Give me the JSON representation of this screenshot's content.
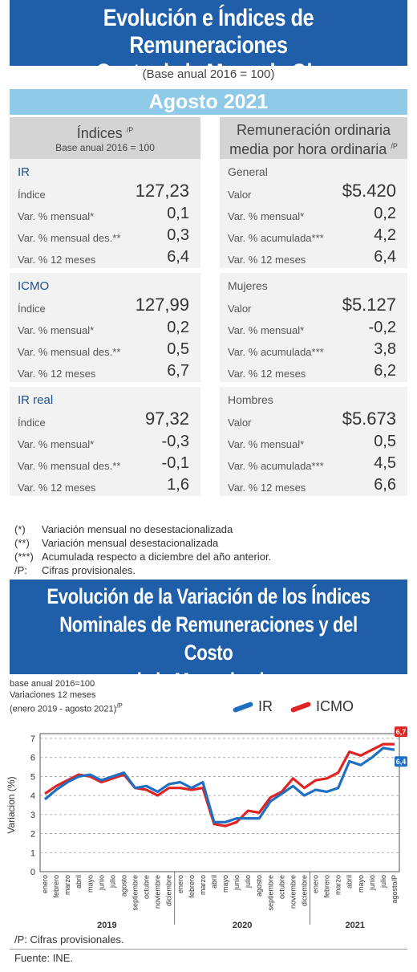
{
  "header": {
    "title_line1": "Evolución e Índices de Remuneraciones",
    "title_line2": "y Costo de la Mano de Obra",
    "base": "(Base anual 2016 = 100)",
    "month": "Agosto 2021"
  },
  "left": {
    "head_title": "Índices",
    "head_sup": "/P",
    "head_sub": "Base anual 2016 = 100",
    "sections": [
      {
        "title": "IR",
        "rows": [
          {
            "label": "Índice",
            "value": "127,23"
          },
          {
            "label": "Var. % mensual*",
            "value": "0,1"
          },
          {
            "label": "Var. % mensual des.**",
            "value": "0,3"
          },
          {
            "label": "Var. % 12 meses",
            "value": "6,4"
          }
        ]
      },
      {
        "title": "ICMO",
        "rows": [
          {
            "label": "Índice",
            "value": "127,99"
          },
          {
            "label": "Var. % mensual*",
            "value": "0,2"
          },
          {
            "label": "Var. % mensual des.**",
            "value": "0,5"
          },
          {
            "label": "Var. % 12 meses",
            "value": "6,7"
          }
        ]
      },
      {
        "title": "IR real",
        "rows": [
          {
            "label": "Índice",
            "value": "97,32"
          },
          {
            "label": "Var. % mensual*",
            "value": "-0,3"
          },
          {
            "label": "Var. % mensual des.**",
            "value": "-0,1"
          },
          {
            "label": "Var. % 12 meses",
            "value": "1,6"
          }
        ]
      }
    ]
  },
  "right": {
    "head_line1": "Remuneración ordinaria",
    "head_line2": "media por hora ordinaria",
    "head_sup": "/P",
    "sections": [
      {
        "title": "General",
        "rows": [
          {
            "label": "Valor",
            "value": "$5.420"
          },
          {
            "label": "Var. % mensual*",
            "value": "0,2"
          },
          {
            "label": "Var. % acumulada***",
            "value": "4,2"
          },
          {
            "label": "Var. % 12 meses",
            "value": "6,4"
          }
        ]
      },
      {
        "title": "Mujeres",
        "rows": [
          {
            "label": "Valor",
            "value": "$5.127"
          },
          {
            "label": "Var. % mensual*",
            "value": "-0,2"
          },
          {
            "label": "Var. % acumulada***",
            "value": "3,8"
          },
          {
            "label": "Var. % 12 meses",
            "value": "6,2"
          }
        ]
      },
      {
        "title": "Hombres",
        "rows": [
          {
            "label": "Valor",
            "value": "$5.673"
          },
          {
            "label": "Var. % mensual*",
            "value": "0,5"
          },
          {
            "label": "Var. % acumulada***",
            "value": "4,5"
          },
          {
            "label": "Var. % 12 meses",
            "value": "6,6"
          }
        ]
      }
    ]
  },
  "notes": [
    {
      "key": "(*)",
      "text": "Variación mensual no desestacionalizada"
    },
    {
      "key": "(**)",
      "text": "Variación mensual desestacionalizada"
    },
    {
      "key": "(***)",
      "text": "Acumulada respecto a diciembre del año anterior."
    },
    {
      "key": "/P:",
      "text": "Cifras provisionales."
    }
  ],
  "bottom_title": {
    "line1": "Evolución de la Variación de los Índices",
    "line2": "Nominales de Remuneraciones y del Costo",
    "line3": "de la Mano de obra"
  },
  "chart_meta": {
    "line1": "base anual 2016=100",
    "line2": "Variaciones 12 meses",
    "line3": "(enero 2019 - agosto 2021)",
    "line3_sup": "/P"
  },
  "chart_foot": "/P:    Cifras provisionales.",
  "source": "Fuente: INE.",
  "chart_data": {
    "type": "line",
    "ylabel": "Variacion (%)",
    "ylim": [
      0,
      7
    ],
    "yticks": [
      0,
      1,
      2,
      3,
      4,
      5,
      6,
      7
    ],
    "grid": "horizontal dashed",
    "legend": "top-right",
    "categories": [
      "enero",
      "febrero",
      "marzo",
      "abril",
      "mayo",
      "junio",
      "julio",
      "agosto",
      "septiembre",
      "octubre",
      "noviembre",
      "diciembre",
      "enero",
      "febrero",
      "marzo",
      "abril",
      "mayo",
      "junio",
      "julio",
      "agosto",
      "septiembre",
      "octubre",
      "noviembre",
      "diciembre",
      "enero",
      "febrero",
      "marzo",
      "abril",
      "mayo",
      "junio",
      "julio",
      "agosto/P"
    ],
    "years": [
      {
        "label": "2019",
        "start": 0,
        "end": 11
      },
      {
        "label": "2020",
        "start": 12,
        "end": 23
      },
      {
        "label": "2021",
        "start": 24,
        "end": 31
      }
    ],
    "series": [
      {
        "name": "IR",
        "color": "#1f6fc2",
        "values": [
          3.8,
          4.3,
          4.7,
          5.0,
          5.1,
          4.8,
          5.0,
          5.2,
          4.4,
          4.5,
          4.2,
          4.6,
          4.7,
          4.4,
          4.7,
          2.6,
          2.6,
          2.8,
          2.8,
          2.8,
          3.7,
          4.1,
          4.5,
          4.0,
          4.3,
          4.2,
          4.4,
          5.8,
          5.6,
          6.0,
          6.5,
          6.4
        ]
      },
      {
        "name": "ICMO",
        "color": "#e02424",
        "values": [
          4.1,
          4.5,
          4.8,
          5.1,
          5.0,
          4.7,
          4.9,
          5.1,
          4.4,
          4.3,
          4.0,
          4.4,
          4.4,
          4.3,
          4.4,
          2.5,
          2.4,
          2.6,
          3.2,
          3.1,
          3.9,
          4.2,
          4.9,
          4.4,
          4.8,
          4.9,
          5.2,
          6.3,
          6.1,
          6.4,
          6.7,
          6.7
        ]
      }
    ],
    "end_labels": [
      {
        "series": "ICMO",
        "text": "6,7"
      },
      {
        "series": "IR",
        "text": "6,4"
      }
    ]
  }
}
